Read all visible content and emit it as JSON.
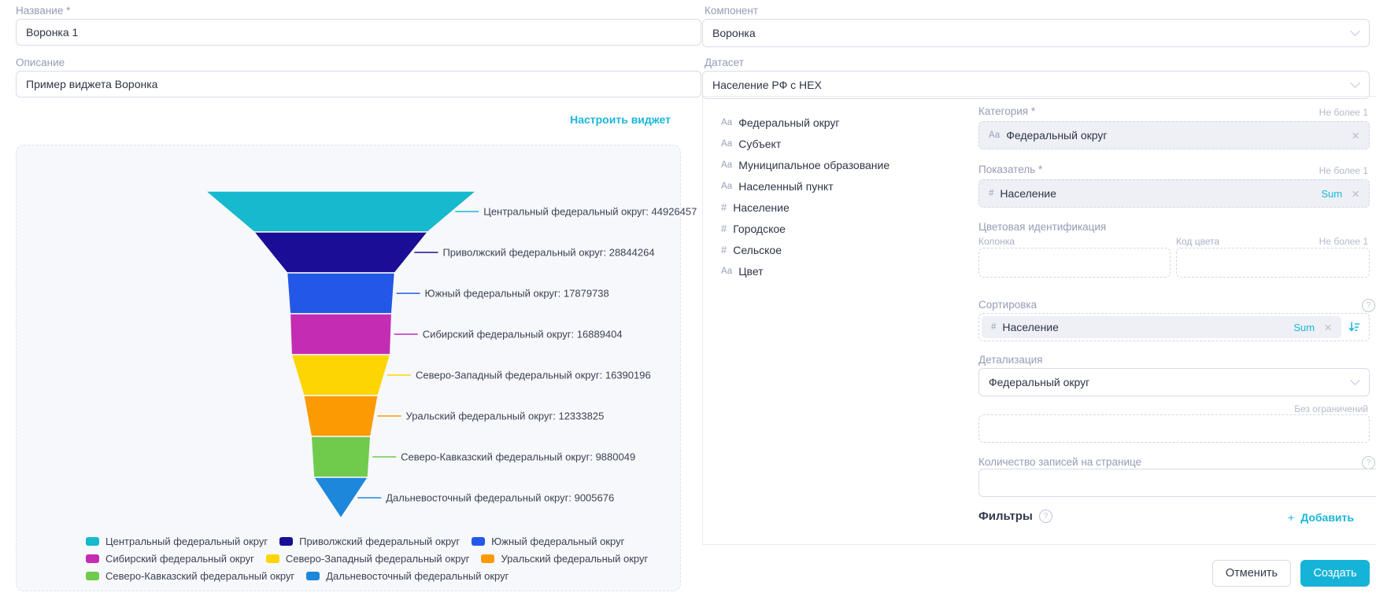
{
  "accent_color": "#1ab6d9",
  "left": {
    "name_label": "Название *",
    "name_value": "Воронка 1",
    "description_label": "Описание",
    "description_value": "Пример виджета Воронка",
    "configure_link": "Настроить виджет"
  },
  "right": {
    "component_label": "Компонент",
    "component_value": "Воронка",
    "dataset_label": "Датасет",
    "dataset_value": "Население РФ с НЕХ",
    "fields": [
      {
        "type": "Аа",
        "label": "Федеральный округ"
      },
      {
        "type": "Аа",
        "label": "Субъект"
      },
      {
        "type": "Аа",
        "label": "Муниципальное образование"
      },
      {
        "type": "Аа",
        "label": "Населенный пункт"
      },
      {
        "type": "#",
        "label": "Население"
      },
      {
        "type": "#",
        "label": "Городское"
      },
      {
        "type": "#",
        "label": "Сельское"
      },
      {
        "type": "Аа",
        "label": "Цвет"
      }
    ],
    "category": {
      "label": "Категория *",
      "hint": "Не более 1",
      "chip_type": "Аа",
      "chip_label": "Федеральный округ"
    },
    "measure": {
      "label": "Показатель *",
      "hint": "Не более 1",
      "chip_type": "#",
      "chip_label": "Население",
      "agg": "Sum"
    },
    "color_identification": {
      "label": "Цветовая идентификация",
      "column_label": "Колонка",
      "code_label": "Код цвета",
      "hint": "Не более 1"
    },
    "sorting": {
      "label": "Сортировка",
      "chip_type": "#",
      "chip_label": "Население",
      "agg": "Sum"
    },
    "detail": {
      "label": "Детализация",
      "value": "Федеральный округ"
    },
    "limit_hint": "Без ограничений",
    "page_size_label": "Количество записей на странице",
    "filters_label": "Фильтры",
    "add_icon": "+",
    "add_label": "Добавить"
  },
  "footer": {
    "cancel_label": "Отменить",
    "create_label": "Создать"
  },
  "chart_data": {
    "type": "funnel",
    "title": "",
    "sort": "descending",
    "legend_position": "bottom",
    "label_format": "{name}: {value}",
    "series": [
      {
        "name": "Центральный федеральный округ",
        "value": 44926457,
        "color": "#16b9cd"
      },
      {
        "name": "Приволжский федеральный округ",
        "value": 28844264,
        "color": "#1a0d96"
      },
      {
        "name": "Южный федеральный округ",
        "value": 17879738,
        "color": "#2357e8"
      },
      {
        "name": "Сибирский федеральный округ",
        "value": 16889404,
        "color": "#c42cb3"
      },
      {
        "name": "Северо-Западный федеральный округ",
        "value": 16390196,
        "color": "#fdd503"
      },
      {
        "name": "Уральский федеральный округ",
        "value": 12333825,
        "color": "#fc9a04"
      },
      {
        "name": "Северо-Кавказский федеральный округ",
        "value": 9880049,
        "color": "#70cb4c"
      },
      {
        "name": "Дальневосточный федеральный округ",
        "value": 9005676,
        "color": "#1d87dc"
      }
    ],
    "legend_rows": [
      [
        0,
        1,
        2
      ],
      [
        3,
        4,
        5
      ],
      [
        6,
        7
      ]
    ]
  }
}
